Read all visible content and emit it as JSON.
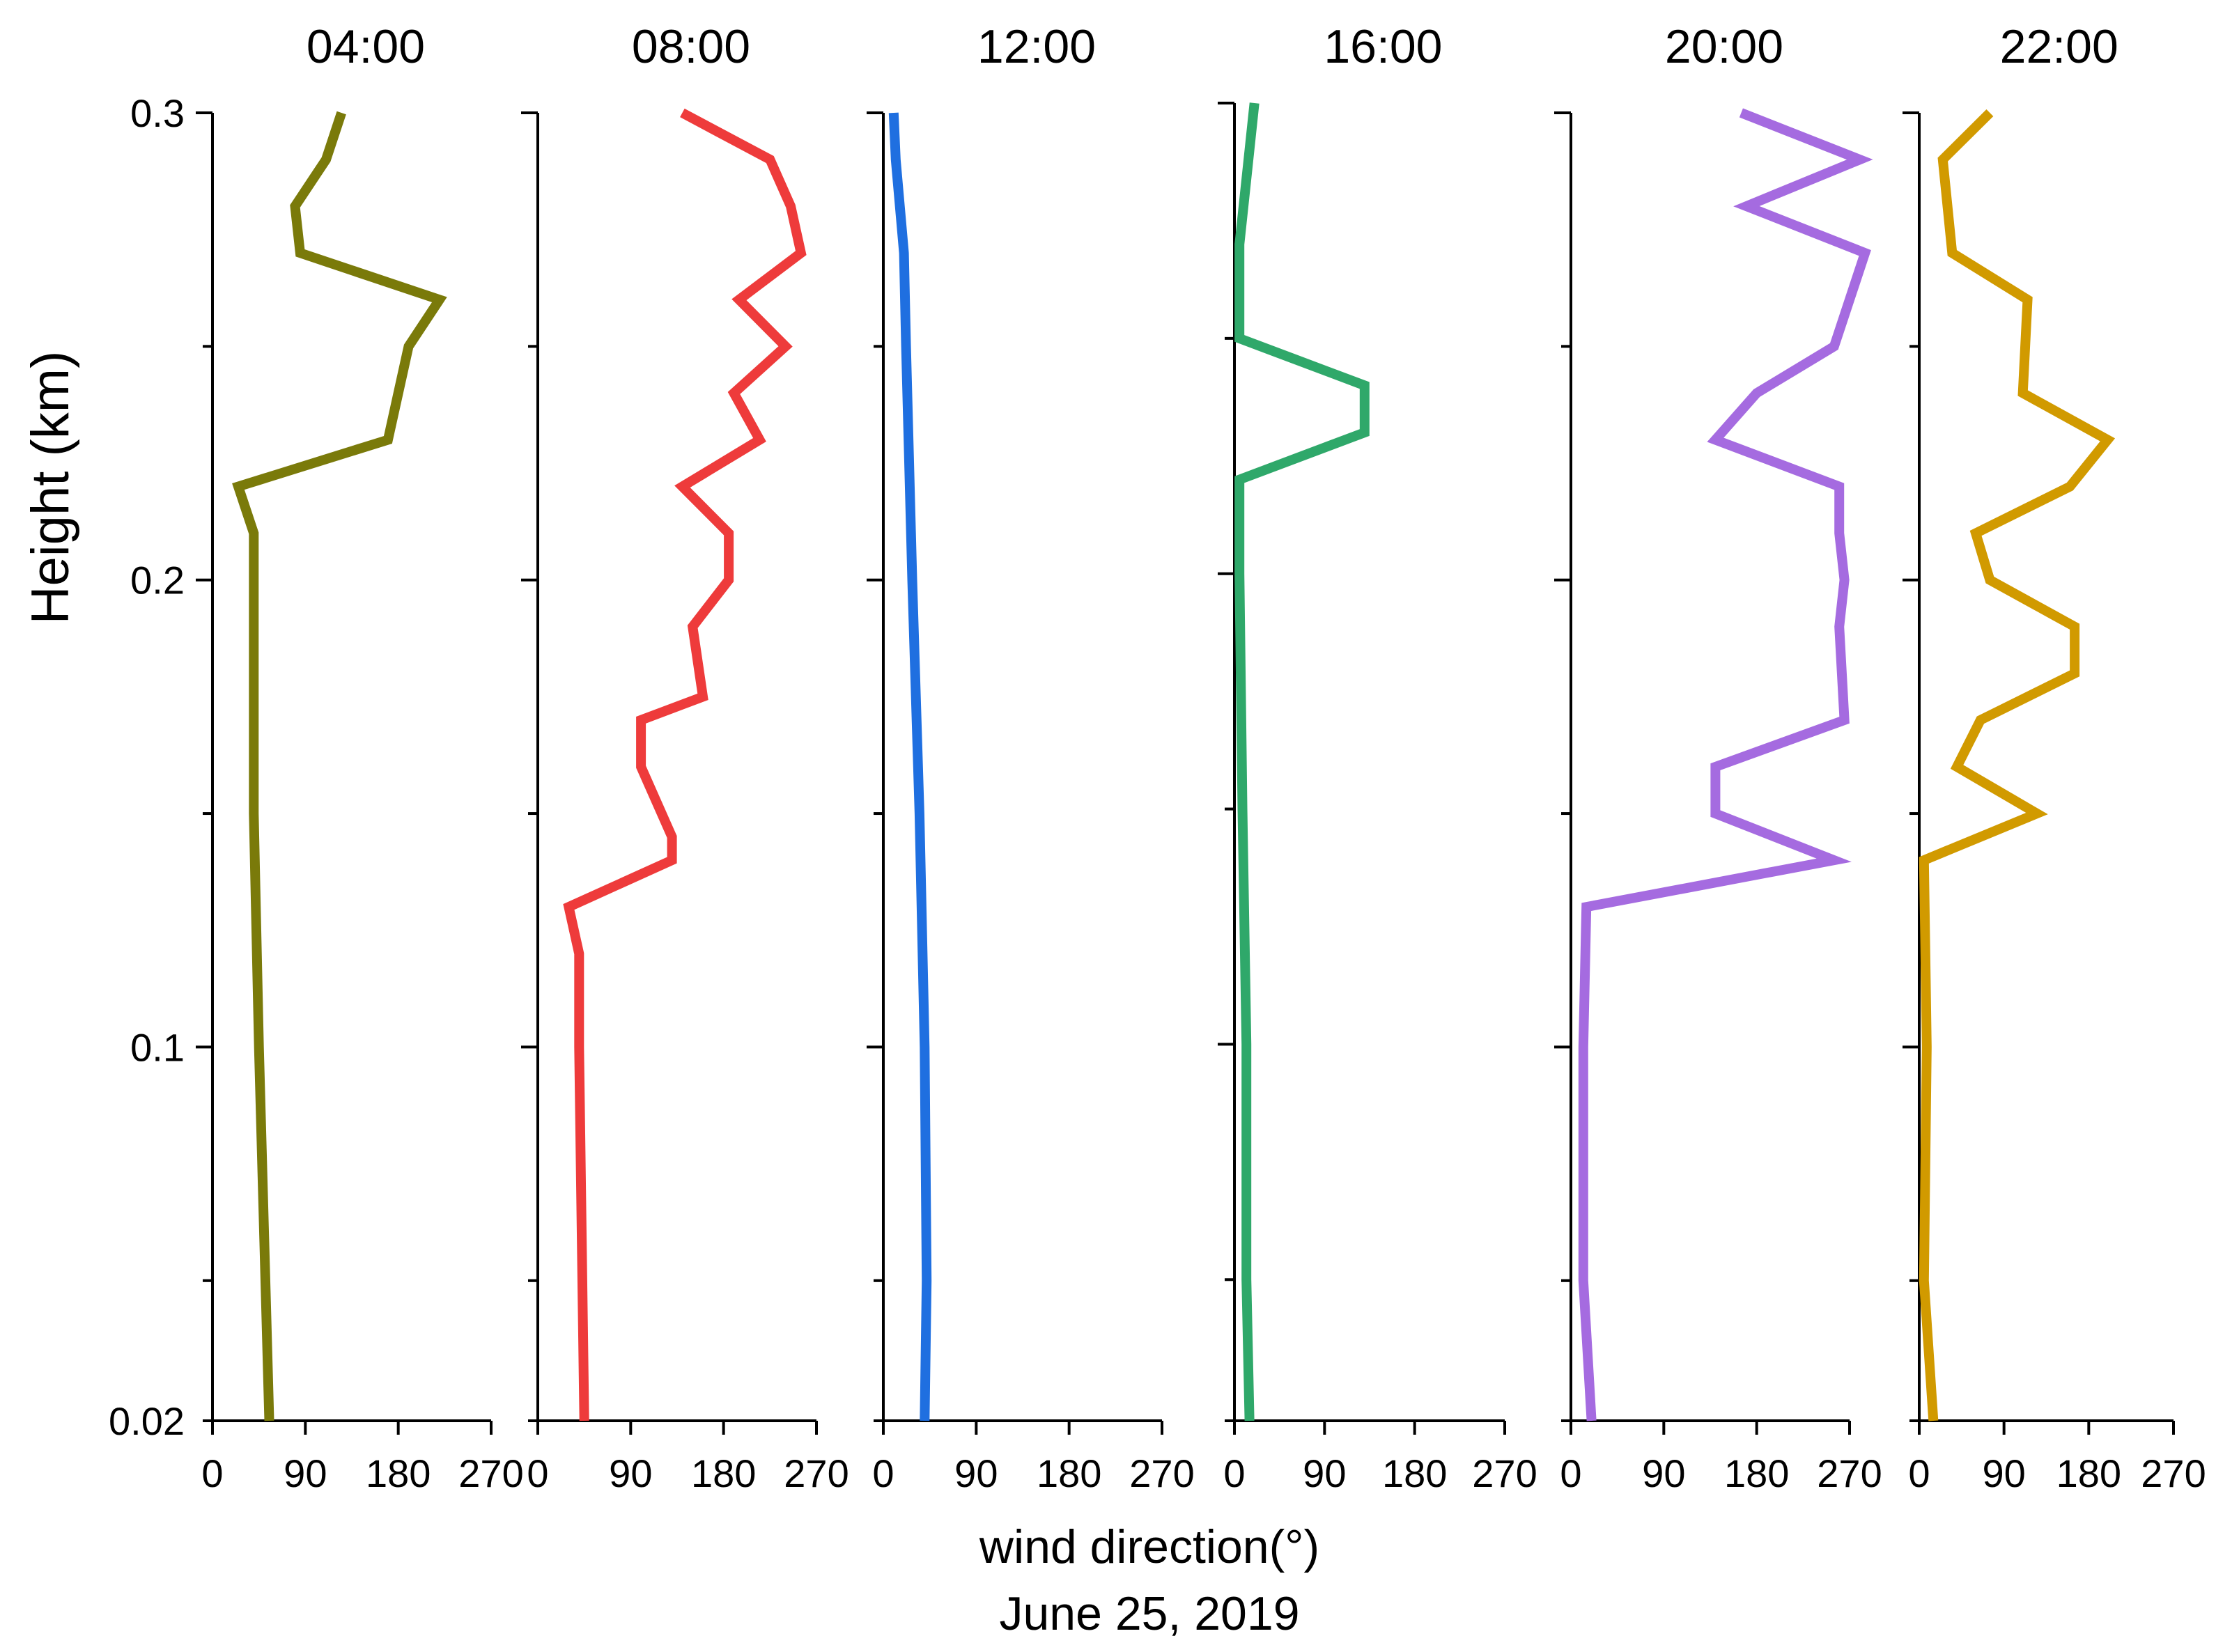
{
  "figure": {
    "ylabel": "Height (km)",
    "xlabel": "wind direction(°)",
    "date": "June 25, 2019"
  },
  "chart_data": {
    "type": "line",
    "orientation": "vertical-profile",
    "ylabel": "Height (km)",
    "xlabel": "wind direction(°)",
    "subtitle": "June 25, 2019",
    "ylim": [
      0.02,
      0.3
    ],
    "xlim": [
      0,
      270
    ],
    "y_ticks_labeled": [
      "0.02",
      "0.1",
      "0.2",
      "0.3"
    ],
    "y_ticks": [
      0.02,
      0.05,
      0.1,
      0.15,
      0.2,
      0.25,
      0.3
    ],
    "x_ticks": [
      0,
      90,
      180,
      270
    ],
    "grid": false,
    "legend": "none",
    "panels": [
      {
        "title": "04:00",
        "color": "#7a7a0a",
        "points": [
          {
            "x": 55,
            "y": 0.02
          },
          {
            "x": 45,
            "y": 0.1
          },
          {
            "x": 40,
            "y": 0.15
          },
          {
            "x": 40,
            "y": 0.2
          },
          {
            "x": 40,
            "y": 0.21
          },
          {
            "x": 25,
            "y": 0.22
          },
          {
            "x": 170,
            "y": 0.23
          },
          {
            "x": 190,
            "y": 0.25
          },
          {
            "x": 220,
            "y": 0.26
          },
          {
            "x": 85,
            "y": 0.27
          },
          {
            "x": 80,
            "y": 0.28
          },
          {
            "x": 110,
            "y": 0.29
          },
          {
            "x": 125,
            "y": 0.3
          }
        ]
      },
      {
        "title": "08:00",
        "color": "#ee3b3b",
        "points": [
          {
            "x": 45,
            "y": 0.02
          },
          {
            "x": 40,
            "y": 0.1
          },
          {
            "x": 40,
            "y": 0.12
          },
          {
            "x": 30,
            "y": 0.13
          },
          {
            "x": 130,
            "y": 0.14
          },
          {
            "x": 130,
            "y": 0.145
          },
          {
            "x": 100,
            "y": 0.16
          },
          {
            "x": 100,
            "y": 0.17
          },
          {
            "x": 160,
            "y": 0.175
          },
          {
            "x": 150,
            "y": 0.19
          },
          {
            "x": 185,
            "y": 0.2
          },
          {
            "x": 185,
            "y": 0.21
          },
          {
            "x": 140,
            "y": 0.22
          },
          {
            "x": 215,
            "y": 0.23
          },
          {
            "x": 190,
            "y": 0.24
          },
          {
            "x": 240,
            "y": 0.25
          },
          {
            "x": 195,
            "y": 0.26
          },
          {
            "x": 255,
            "y": 0.27
          },
          {
            "x": 245,
            "y": 0.28
          },
          {
            "x": 225,
            "y": 0.29
          },
          {
            "x": 140,
            "y": 0.3
          }
        ]
      },
      {
        "title": "12:00",
        "color": "#1f6fe0",
        "points": [
          {
            "x": 40,
            "y": 0.02
          },
          {
            "x": 42,
            "y": 0.05
          },
          {
            "x": 40,
            "y": 0.1
          },
          {
            "x": 35,
            "y": 0.15
          },
          {
            "x": 28,
            "y": 0.2
          },
          {
            "x": 22,
            "y": 0.25
          },
          {
            "x": 20,
            "y": 0.27
          },
          {
            "x": 12,
            "y": 0.29
          },
          {
            "x": 10,
            "y": 0.3
          }
        ]
      },
      {
        "title": "16:00",
        "color": "#2fa86a",
        "points": [
          {
            "x": 15,
            "y": 0.02
          },
          {
            "x": 12,
            "y": 0.05
          },
          {
            "x": 12,
            "y": 0.1
          },
          {
            "x": 8,
            "y": 0.15
          },
          {
            "x": 5,
            "y": 0.2
          },
          {
            "x": 5,
            "y": 0.22
          },
          {
            "x": 130,
            "y": 0.23
          },
          {
            "x": 130,
            "y": 0.24
          },
          {
            "x": 5,
            "y": 0.25
          },
          {
            "x": 5,
            "y": 0.27
          },
          {
            "x": 10,
            "y": 0.28
          },
          {
            "x": 20,
            "y": 0.3
          }
        ]
      },
      {
        "title": "20:00",
        "color": "#a56be0",
        "points": [
          {
            "x": 20,
            "y": 0.02
          },
          {
            "x": 12,
            "y": 0.05
          },
          {
            "x": 12,
            "y": 0.1
          },
          {
            "x": 15,
            "y": 0.13
          },
          {
            "x": 255,
            "y": 0.14
          },
          {
            "x": 140,
            "y": 0.15
          },
          {
            "x": 140,
            "y": 0.16
          },
          {
            "x": 265,
            "y": 0.17
          },
          {
            "x": 260,
            "y": 0.19
          },
          {
            "x": 265,
            "y": 0.2
          },
          {
            "x": 260,
            "y": 0.21
          },
          {
            "x": 260,
            "y": 0.22
          },
          {
            "x": 140,
            "y": 0.23
          },
          {
            "x": 180,
            "y": 0.24
          },
          {
            "x": 255,
            "y": 0.25
          },
          {
            "x": 285,
            "y": 0.27
          },
          {
            "x": 170,
            "y": 0.28
          },
          {
            "x": 280,
            "y": 0.29
          },
          {
            "x": 165,
            "y": 0.3
          }
        ]
      },
      {
        "title": "22:00",
        "color": "#d19a00",
        "points": [
          {
            "x": 15,
            "y": 0.02
          },
          {
            "x": 5,
            "y": 0.05
          },
          {
            "x": 8,
            "y": 0.1
          },
          {
            "x": 5,
            "y": 0.14
          },
          {
            "x": 125,
            "y": 0.15
          },
          {
            "x": 40,
            "y": 0.16
          },
          {
            "x": 65,
            "y": 0.17
          },
          {
            "x": 165,
            "y": 0.18
          },
          {
            "x": 165,
            "y": 0.19
          },
          {
            "x": 75,
            "y": 0.2
          },
          {
            "x": 60,
            "y": 0.21
          },
          {
            "x": 160,
            "y": 0.22
          },
          {
            "x": 200,
            "y": 0.23
          },
          {
            "x": 110,
            "y": 0.24
          },
          {
            "x": 115,
            "y": 0.26
          },
          {
            "x": 35,
            "y": 0.27
          },
          {
            "x": 25,
            "y": 0.29
          },
          {
            "x": 75,
            "y": 0.3
          }
        ]
      }
    ]
  }
}
